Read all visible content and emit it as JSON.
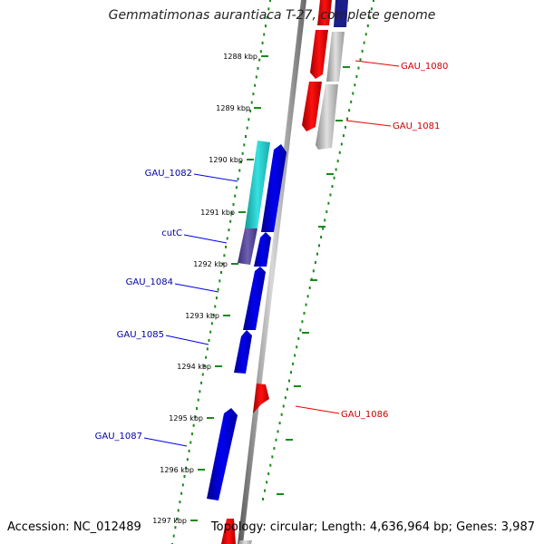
{
  "title": "Gemmatimonas aurantiaca T-27, complete genome",
  "accession": "Accession: NC_012489",
  "topology": "Topology: circular; Length: 4,636,964 bp; Genes: 3,987",
  "ruler_ticks": [
    "1288 kbp",
    "1289 kbp",
    "1290 kbp",
    "1291 kbp",
    "1292 kbp",
    "1293 kbp",
    "1294 kbp",
    "1295 kbp",
    "1296 kbp",
    "1297 kbp"
  ],
  "gene_labels": [
    {
      "name": "GAU_1080",
      "strand": "reverse"
    },
    {
      "name": "GAU_1081",
      "strand": "reverse"
    },
    {
      "name": "GAU_1082",
      "strand": "forward"
    },
    {
      "name": "cutC",
      "strand": "forward"
    },
    {
      "name": "GAU_1084",
      "strand": "forward"
    },
    {
      "name": "GAU_1085",
      "strand": "forward"
    },
    {
      "name": "GAU_1086",
      "strand": "reverse"
    },
    {
      "name": "GAU_1087",
      "strand": "forward"
    }
  ],
  "colors": {
    "forward_gene": "#0000ee",
    "reverse_gene": "#ee0000",
    "forward_label": "#0000aa",
    "reverse_label": "#cc0000",
    "cyan_gene": "#22c8c8",
    "purple_gene": "#5a4a99",
    "gray_gene": "#b8b8b8",
    "backbone": "#888888",
    "dots": "#1a8a1a"
  }
}
